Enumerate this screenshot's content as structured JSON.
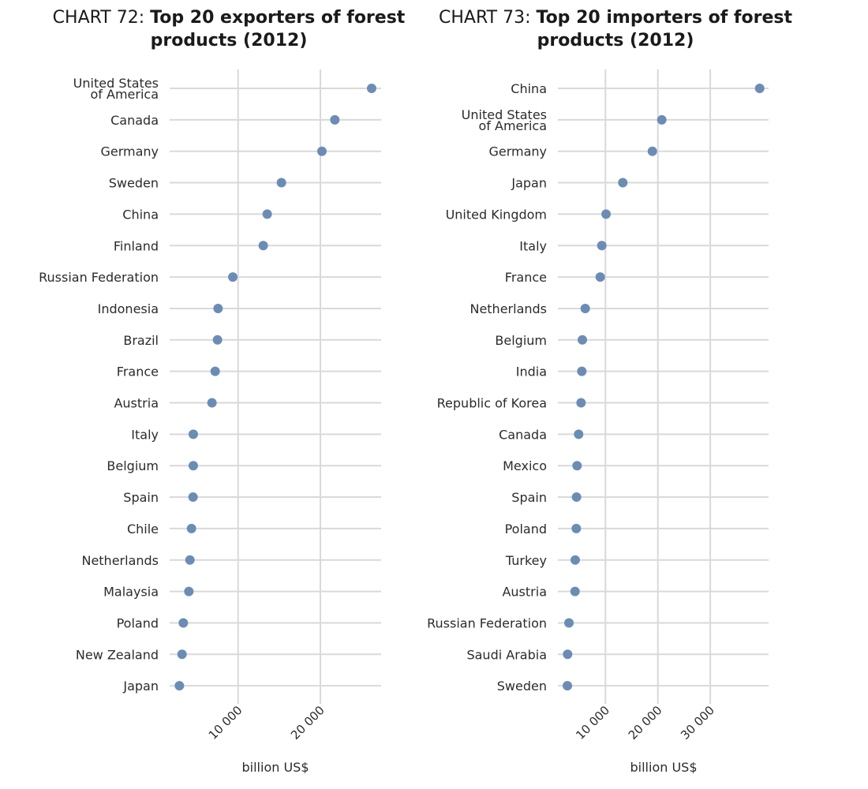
{
  "chart_data": [
    {
      "type": "scatter",
      "subtype": "dot-plot",
      "title_prefix": "CHART 72: ",
      "title": "Top 20 exporters of forest products (2012)",
      "title_line1": "Top 20 exporters of forest",
      "title_line2": "products (2012)",
      "xlabel": "billion US$",
      "ylabel": "",
      "xlim": [
        0,
        27000
      ],
      "xticks": [
        10000,
        20000
      ],
      "xtick_labels": [
        "10 000",
        "20 000"
      ],
      "grid": true,
      "point_color": "#6b8db5",
      "categories": [
        "United States\nof America",
        "Canada",
        "Germany",
        "Sweden",
        "China",
        "Finland",
        "Russian Federation",
        "Indonesia",
        "Brazil",
        "France",
        "Austria",
        "Italy",
        "Belgium",
        "Spain",
        "Chile",
        "Netherlands",
        "Malaysia",
        "Poland",
        "New Zealand",
        "Japan"
      ],
      "values": [
        26230,
        21760,
        20190,
        15270,
        13540,
        13060,
        9360,
        7570,
        7500,
        7220,
        6830,
        4560,
        4560,
        4530,
        4340,
        4150,
        4020,
        3350,
        3190,
        2870
      ]
    },
    {
      "type": "scatter",
      "subtype": "dot-plot",
      "title_prefix": "CHART 73: ",
      "title": "Top 20 importers of forest products (2012)",
      "title_line1": "Top 20 importers of forest",
      "title_line2": "products (2012)",
      "xlabel": "billion US$",
      "ylabel": "",
      "xlim": [
        0,
        41000
      ],
      "xticks": [
        10000,
        20000,
        30000
      ],
      "xtick_labels": [
        "10 000",
        "20 000",
        "30 000"
      ],
      "grid": true,
      "point_color": "#6b8db5",
      "categories": [
        "China",
        "United States\nof America",
        "Germany",
        "Japan",
        "United Kingdom",
        "Italy",
        "France",
        "Netherlands",
        "Belgium",
        "India",
        "Republic of Korea",
        "Canada",
        "Mexico",
        "Spain",
        "Poland",
        "Turkey",
        "Austria",
        "Russian Federation",
        "Saudi Arabia",
        "Sweden"
      ],
      "values": [
        39430,
        20750,
        18950,
        13310,
        10110,
        9300,
        9000,
        6140,
        5590,
        5490,
        5340,
        4880,
        4580,
        4480,
        4430,
        4230,
        4190,
        3030,
        2770,
        2730
      ]
    }
  ]
}
